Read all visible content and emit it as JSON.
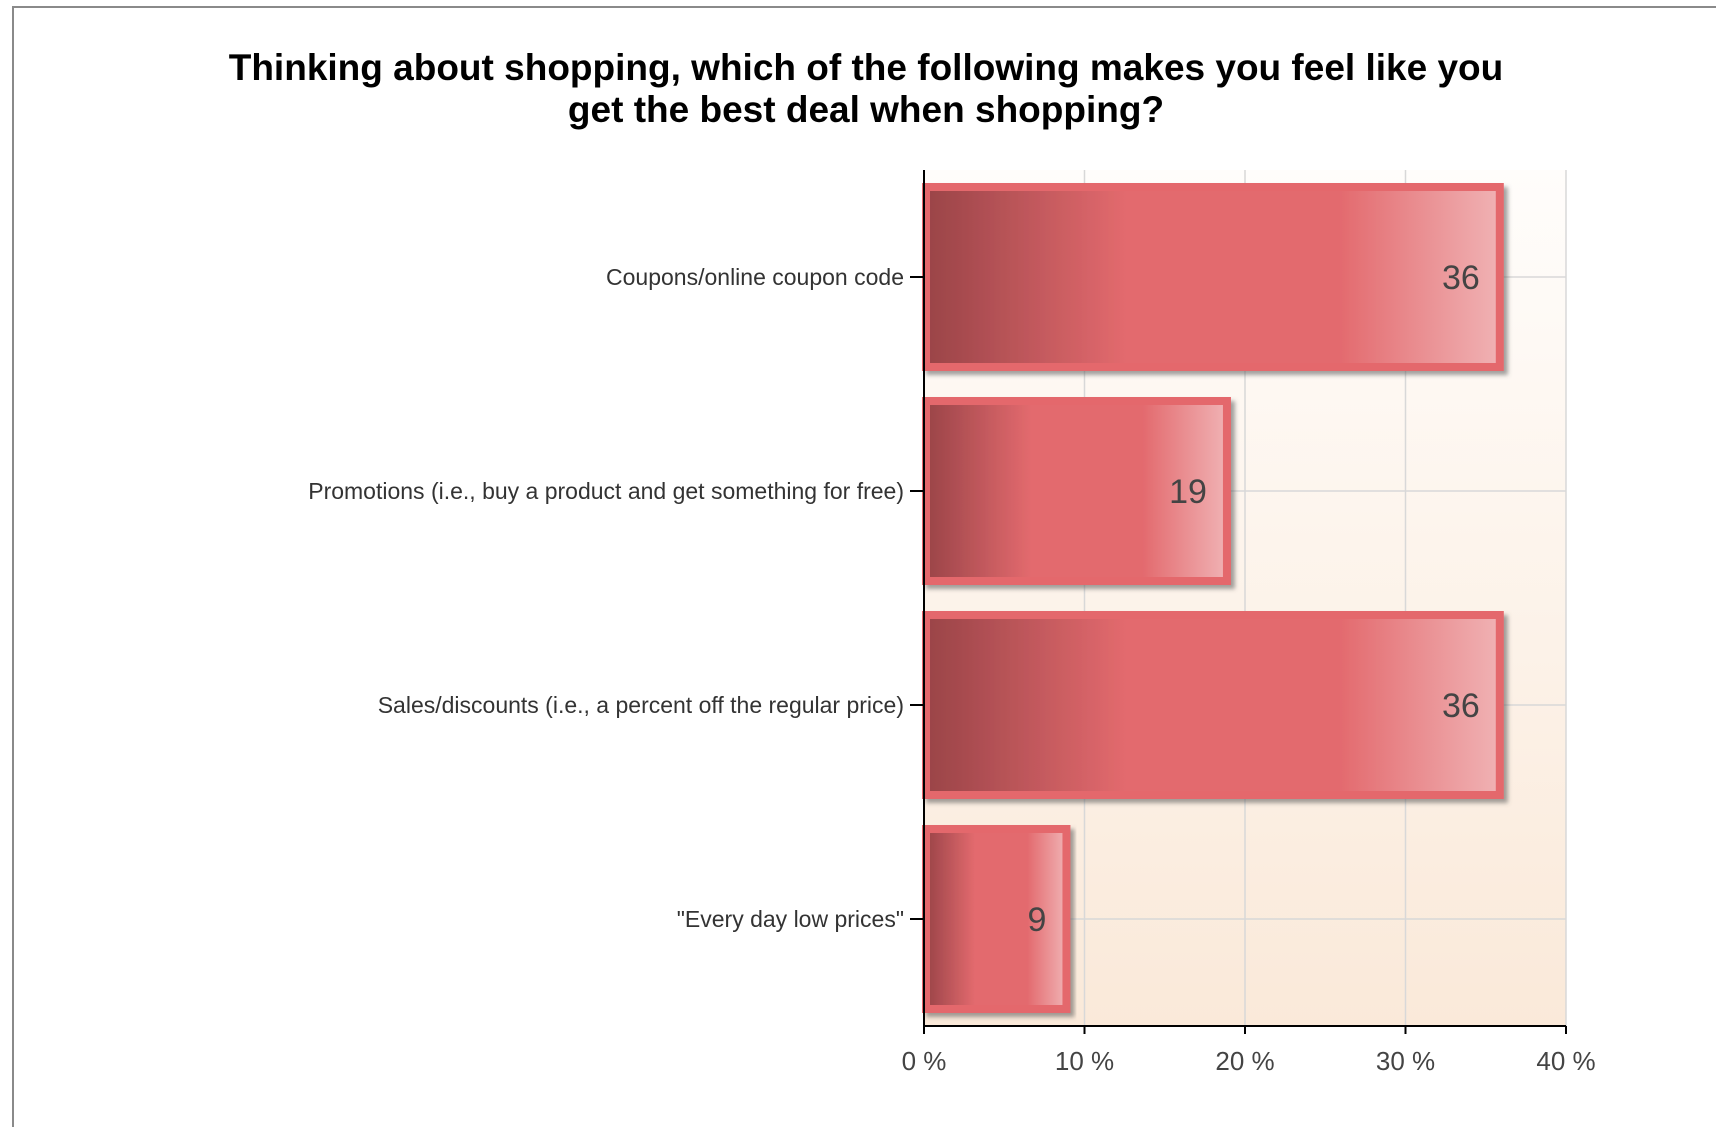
{
  "chart_data": {
    "type": "bar",
    "orientation": "horizontal",
    "title_lines": [
      "Thinking about shopping, which of the following makes you feel like you",
      "get the best deal when shopping?"
    ],
    "categories": [
      "Coupons/online coupon code",
      "Promotions (i.e., buy a product and get something for free)",
      "Sales/discounts (i.e., a percent off the regular price)",
      "\"Every day low prices\""
    ],
    "values": [
      36,
      19,
      36,
      9
    ],
    "data_labels": [
      "36",
      "19",
      "36",
      "9"
    ],
    "xlim": [
      0,
      40
    ],
    "x_ticks": [
      0,
      10,
      20,
      30,
      40
    ],
    "x_tick_labels": [
      "0 %",
      "10 %",
      "20 %",
      "30 %",
      "40 %"
    ],
    "grid": true,
    "legend": "none",
    "colors": {
      "bar_dark": "#9a4448",
      "bar_mid": "#e36a6e",
      "bar_light": "#f0b2b4",
      "bar_border": "#e4686c",
      "plot_bg_top": "#fffdfb",
      "plot_bg_bottom": "#fae9d9",
      "grid": "#d8d8d8",
      "axis": "#000000"
    }
  }
}
